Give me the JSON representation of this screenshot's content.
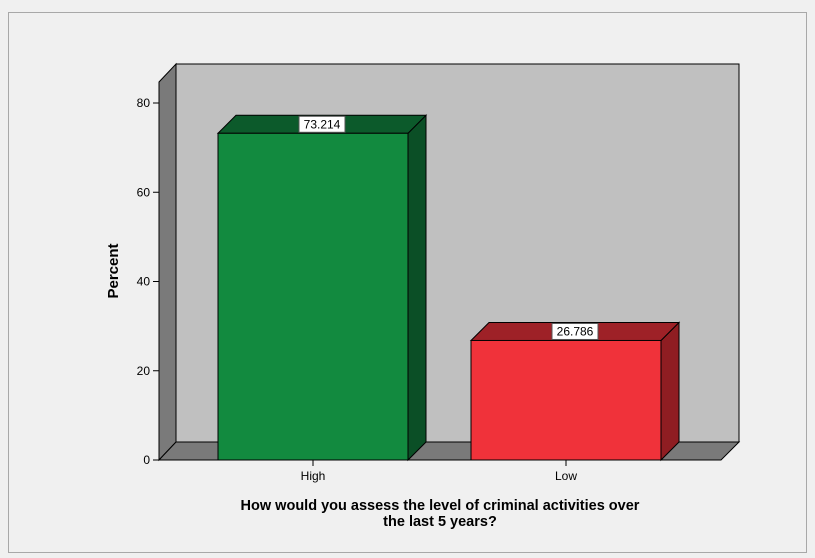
{
  "chart_data": {
    "type": "bar",
    "categories": [
      "High",
      "Low"
    ],
    "values": [
      73.214,
      26.786
    ],
    "data_labels": [
      "73.214",
      "26.786"
    ],
    "xlabel_lines": [
      "How would you assess the level of criminal activities over",
      "the last 5 years?"
    ],
    "ylabel": "Percent",
    "ylim": [
      0,
      80
    ],
    "yticks": [
      "0",
      "20",
      "40",
      "60",
      "80"
    ],
    "style": "3d",
    "colors": {
      "High": {
        "front": "#128a3f",
        "side": "#0b4f26",
        "top": "#0c5a2b"
      },
      "Low": {
        "front": "#f0323a",
        "side": "#8f1d22",
        "top": "#9e2127"
      },
      "wall": "#c0c0c0",
      "floor": "#7a7a7a"
    }
  }
}
